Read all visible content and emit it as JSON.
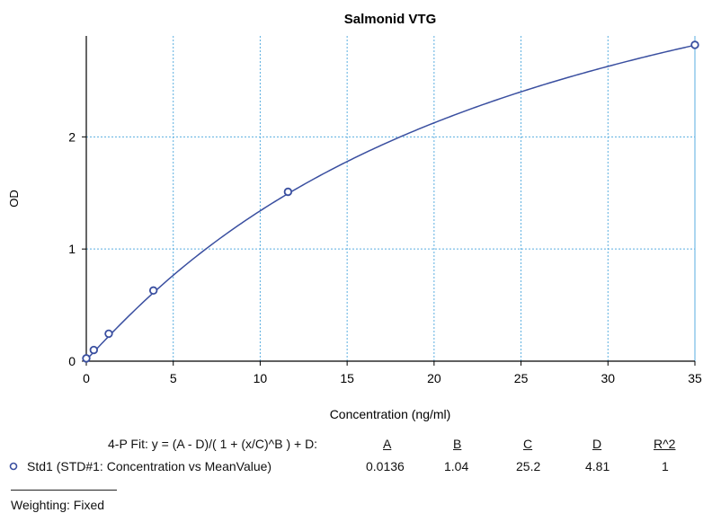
{
  "chart_data": {
    "type": "line",
    "title": "Salmonid VTG",
    "xlabel": "Concentration (ng/ml)",
    "ylabel": "OD",
    "xlim": [
      0,
      35
    ],
    "ylim": [
      0,
      2.9
    ],
    "x_ticks": [
      0,
      5,
      10,
      15,
      20,
      25,
      30,
      35
    ],
    "y_ticks": [
      0,
      1,
      2
    ],
    "grid": true,
    "grid_color": "#5aaee0",
    "series": [
      {
        "name": "Std1 (STD#1: Concentration vs MeanValue)",
        "color": "#3a4fa0",
        "points": [
          {
            "x": 0,
            "y": 0.025
          },
          {
            "x": 0.43,
            "y": 0.1
          },
          {
            "x": 1.29,
            "y": 0.245
          },
          {
            "x": 3.86,
            "y": 0.63
          },
          {
            "x": 11.6,
            "y": 1.51
          },
          {
            "x": 35,
            "y": 2.82
          }
        ],
        "fit": {
          "A": 0.0136,
          "B": 1.04,
          "C": 25.2,
          "D": 4.81
        }
      }
    ]
  },
  "fit_panel": {
    "equation": "4-P Fit: y = (A - D)/( 1 + (x/C)^B ) + D:",
    "headers": [
      "A",
      "B",
      "C",
      "D",
      "R^2"
    ],
    "row_label": "Std1 (STD#1: Concentration vs MeanValue)",
    "row_values": [
      "0.0136",
      "1.04",
      "25.2",
      "4.81",
      "1"
    ],
    "weighting": "Weighting: Fixed"
  }
}
